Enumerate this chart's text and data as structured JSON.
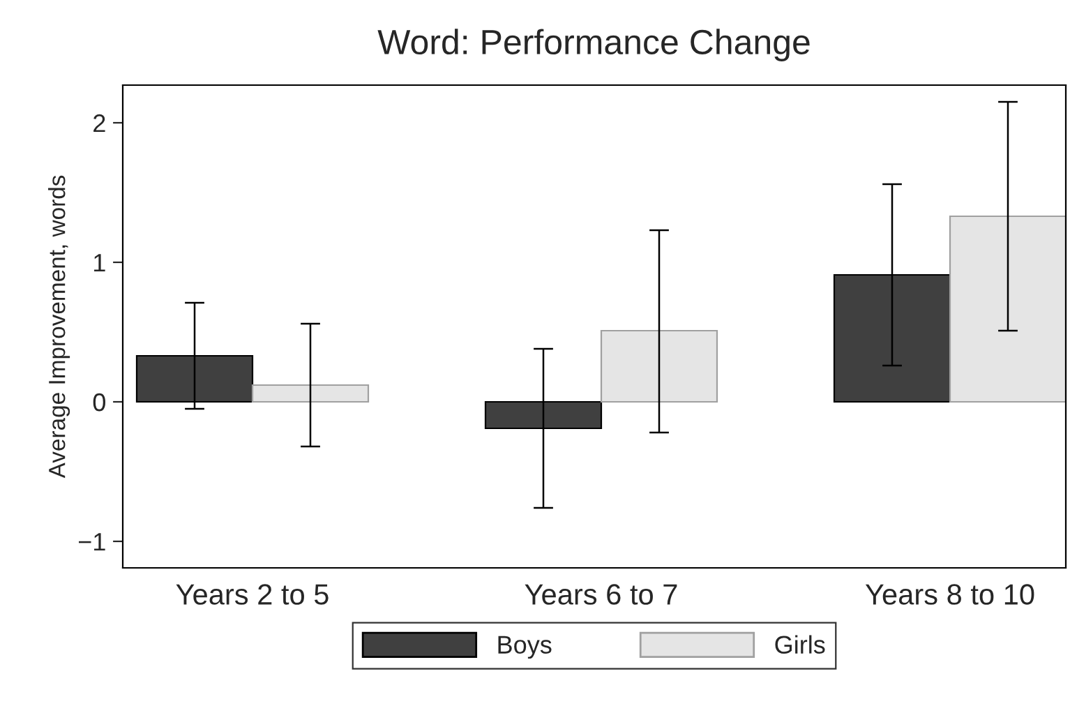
{
  "chart_data": {
    "type": "bar",
    "title": "Word: Performance Change",
    "ylabel": "Average Improvement, words",
    "categories": [
      "Years 2 to 5",
      "Years 6 to 7",
      "Years 8 to 10"
    ],
    "series": [
      {
        "name": "Boys",
        "color": "#404040",
        "values": [
          0.33,
          -0.19,
          0.91
        ],
        "errors": [
          [
            -0.05,
            0.71
          ],
          [
            -0.76,
            0.38
          ],
          [
            0.26,
            1.56
          ]
        ]
      },
      {
        "name": "Girls",
        "color": "#e5e5e5",
        "values": [
          0.12,
          0.51,
          1.33
        ],
        "errors": [
          [
            -0.32,
            0.56
          ],
          [
            -0.22,
            1.23
          ],
          [
            0.51,
            2.15
          ]
        ]
      }
    ],
    "ylim": [
      -1.19,
      2.27
    ],
    "yticks": [
      {
        "value": -1,
        "label": "−1"
      },
      0,
      1,
      2
    ],
    "grid": false,
    "legend": "bottom"
  }
}
